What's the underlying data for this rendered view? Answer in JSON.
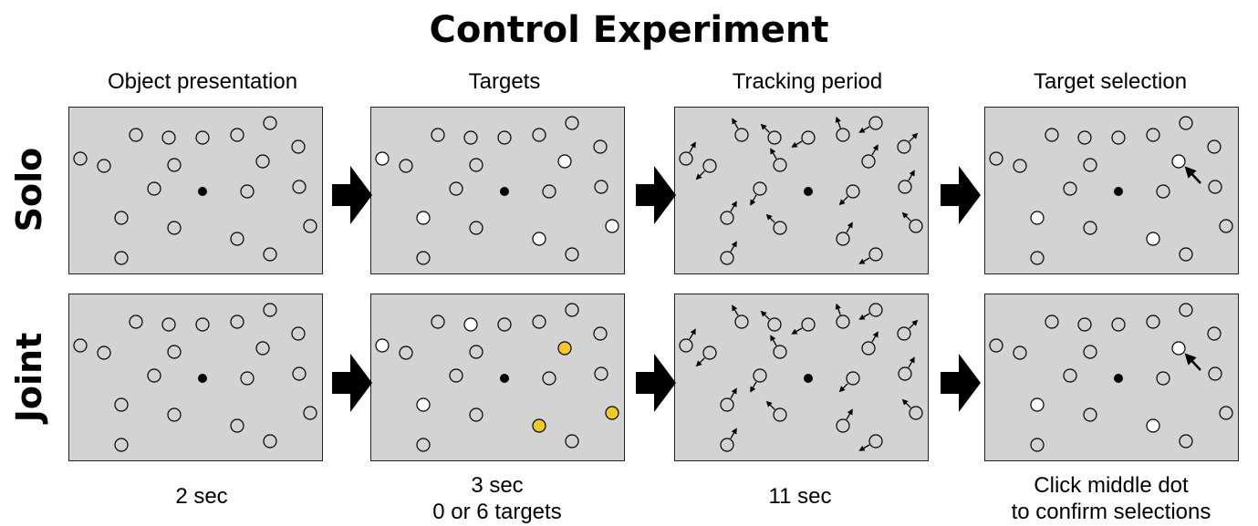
{
  "title": "Control Experiment",
  "columns": [
    {
      "heading": "Object presentation",
      "footer": [
        "2 sec"
      ]
    },
    {
      "heading": "Targets",
      "footer": [
        "3 sec",
        "0 or 6 targets"
      ]
    },
    {
      "heading": "Tracking period",
      "footer": [
        "11 sec"
      ]
    },
    {
      "heading": "Target selection",
      "footer": [
        "Click middle dot",
        "to confirm selections"
      ]
    }
  ],
  "rows": [
    {
      "label": "Solo"
    },
    {
      "label": "Joint"
    }
  ],
  "colors": {
    "panel": "#d3d3d3",
    "target_white": "#ffffff",
    "target_yellow": "#f2c928",
    "fixation": "#000000"
  }
}
